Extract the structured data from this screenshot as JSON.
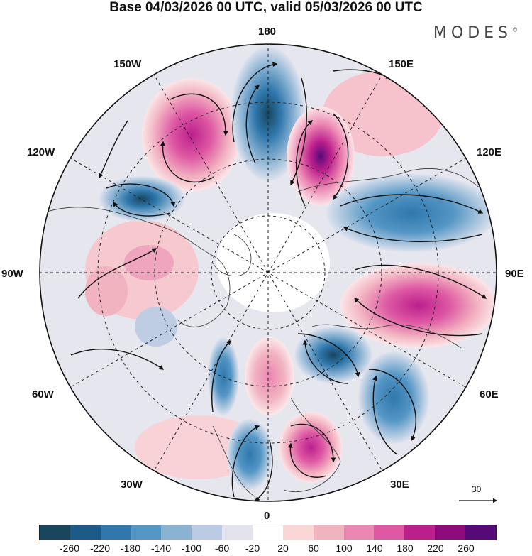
{
  "header": {
    "title": "Base 04/03/2026 00 UTC, valid 05/03/2026 00 UTC",
    "brand": "MODES",
    "brand_mark": "©"
  },
  "map": {
    "projection": "north-polar-stereographic",
    "longitude_labels": {
      "top": "180",
      "top_left": "150W",
      "top_right": "150E",
      "upper_left": "120W",
      "upper_right": "120E",
      "left": "90W",
      "right": "90E",
      "lower_left": "60W",
      "lower_right": "60E",
      "bottom_left": "30W",
      "bottom_right": "30E",
      "bottom": "0"
    },
    "anomaly_centers": [
      {
        "sign": "negative",
        "strength": "strong",
        "region": "near 180"
      },
      {
        "sign": "positive",
        "strength": "strong",
        "region": "near 150E"
      },
      {
        "sign": "positive",
        "strength": "moderate",
        "region": "near 150W"
      },
      {
        "sign": "negative",
        "strength": "strong",
        "region": "near 120W"
      },
      {
        "sign": "negative",
        "strength": "moderate",
        "region": "near 100E"
      },
      {
        "sign": "positive",
        "strength": "strong",
        "region": "near 80E"
      },
      {
        "sign": "negative",
        "strength": "strong",
        "region": "near 50E"
      },
      {
        "sign": "positive",
        "strength": "strong",
        "region": "near 30E"
      },
      {
        "sign": "negative",
        "strength": "moderate",
        "region": "near 10W"
      }
    ]
  },
  "reference_vector": {
    "label": "30"
  },
  "colorbar": {
    "colors": [
      "#18465f",
      "#1c5b88",
      "#2f77ac",
      "#5496c5",
      "#89b2d3",
      "#bbcbe3",
      "#e3e3ee",
      "#ffffff",
      "#f9d7d7",
      "#f2b3c1",
      "#ec86b2",
      "#de58a4",
      "#bb1f8c",
      "#8e0b7e",
      "#57097a"
    ],
    "ticks": [
      "-260",
      "-220",
      "-180",
      "-140",
      "-100",
      "-60",
      "-20",
      "20",
      "60",
      "100",
      "140",
      "180",
      "220",
      "260"
    ]
  }
}
